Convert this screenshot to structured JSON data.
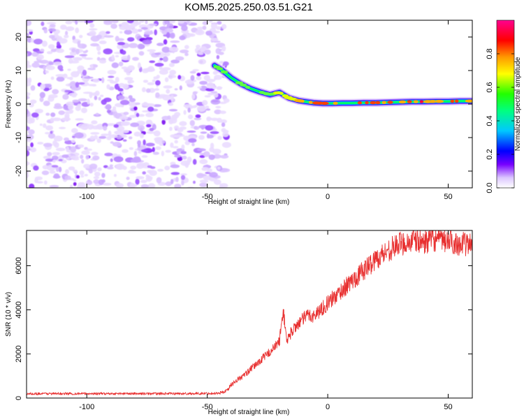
{
  "title": "KOM5.2025.250.03.51.G21",
  "chart_data": [
    {
      "type": "heatmap",
      "name": "spectrogram",
      "xlabel": "Height of straight line (km)",
      "ylabel": "Frequency (Hz)",
      "xlim": [
        -125,
        60
      ],
      "ylim": [
        -25,
        25
      ],
      "xticks": [
        -100,
        -50,
        0,
        50
      ],
      "yticks": [
        -20,
        -10,
        0,
        10,
        20
      ],
      "xtick_labels": [
        "-100",
        "-50",
        "0",
        "50"
      ],
      "ytick_labels": [
        "-20",
        "-10",
        "0",
        "10",
        "20"
      ],
      "noise_region_x": [
        -125,
        -43
      ],
      "signal_track": {
        "x": [
          -47,
          -44,
          -40,
          -36,
          -32,
          -28,
          -24,
          -20,
          -18,
          -16,
          -14,
          -12,
          -10,
          -6,
          -2,
          2,
          6,
          10,
          15,
          20,
          25,
          30,
          35,
          40,
          45,
          50,
          55,
          60
        ],
        "y": [
          11.5,
          10.2,
          7.8,
          6.0,
          4.6,
          3.6,
          2.8,
          3.5,
          2.6,
          1.8,
          1.4,
          1.0,
          0.8,
          0.4,
          0.2,
          0.2,
          0.3,
          0.3,
          0.4,
          0.4,
          0.5,
          0.6,
          0.7,
          0.7,
          0.8,
          0.8,
          0.9,
          0.9
        ],
        "amplitude": [
          0.3,
          0.45,
          0.5,
          0.55,
          0.6,
          0.65,
          0.7,
          0.75,
          0.8,
          0.8,
          0.85,
          0.9,
          0.9,
          0.95,
          0.95,
          0.95,
          1.0,
          1.0,
          0.95,
          1.0,
          0.95,
          1.0,
          1.0,
          0.95,
          0.95,
          1.0,
          0.95,
          1.0
        ]
      },
      "colorbar": {
        "label": "Normalized spectral amplitude",
        "range": [
          0,
          1
        ],
        "ticks": [
          0,
          0.2,
          0.4,
          0.6,
          0.8
        ],
        "tick_labels": [
          "0.0",
          "0.2",
          "0.4",
          "0.6",
          "0.8"
        ],
        "colormap": [
          "#ffffff",
          "#7700ff",
          "#0000ff",
          "#00ffff",
          "#00ff00",
          "#ffff00",
          "#ff7700",
          "#ff0000",
          "#ff0088"
        ]
      }
    },
    {
      "type": "line",
      "name": "snr",
      "xlabel": "Height of straight line (km)",
      "ylabel": "SNR (10 * v/v)",
      "xlim": [
        -125,
        60
      ],
      "ylim": [
        0,
        7600
      ],
      "xticks": [
        -100,
        -50,
        0,
        50
      ],
      "yticks": [
        0,
        2000,
        4000,
        6000
      ],
      "xtick_labels": [
        "-100",
        "-50",
        "0",
        "50"
      ],
      "ytick_labels": [
        "0",
        "2000",
        "4000",
        "6000"
      ],
      "color": "#e83030",
      "series": [
        {
          "name": "SNR",
          "x": [
            -125,
            -100,
            -80,
            -60,
            -50,
            -45,
            -42,
            -40,
            -38,
            -35,
            -32,
            -30,
            -27,
            -25,
            -22,
            -20,
            -18.5,
            -17,
            -15,
            -13,
            -10,
            -8,
            -6,
            -4,
            -2,
            0,
            2,
            5,
            8,
            10,
            13,
            15,
            18,
            20,
            25,
            30,
            35,
            40,
            45,
            50,
            55,
            60
          ],
          "y": [
            200,
            200,
            200,
            200,
            210,
            220,
            330,
            600,
            800,
            1000,
            1300,
            1500,
            1800,
            2000,
            2300,
            2600,
            4000,
            2600,
            3000,
            3300,
            3600,
            3800,
            3700,
            3900,
            4100,
            4300,
            4500,
            4800,
            5100,
            5300,
            5600,
            5800,
            6100,
            6300,
            6700,
            7000,
            7100,
            7100,
            7200,
            7100,
            7000,
            6950
          ]
        }
      ]
    }
  ]
}
